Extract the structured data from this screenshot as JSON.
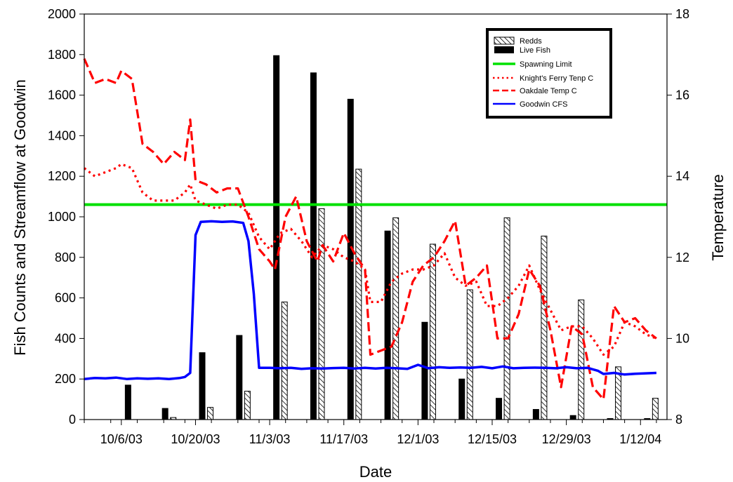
{
  "chart_data": {
    "type": "bar",
    "xlabel": "Date",
    "ylabel": "Fish Counts and Streamflow at Goodwin",
    "y2label": "Temperature",
    "x_axis": {
      "start": "2003-09-29",
      "end": "2004-01-17",
      "tick_labels": [
        "10/6/03",
        "10/20/03",
        "11/3/03",
        "11/17/03",
        "12/1/03",
        "12/15/03",
        "12/29/03",
        "1/12/04"
      ],
      "tick_dates": [
        "2003-10-06",
        "2003-10-20",
        "2003-11-03",
        "2003-11-17",
        "2003-12-01",
        "2003-12-15",
        "2003-12-29",
        "2004-01-12"
      ],
      "minor_tick_dates": [
        "2003-09-29",
        "2003-10-04",
        "2003-10-09",
        "2003-10-14",
        "2003-10-18",
        "2003-10-23",
        "2003-10-28",
        "2003-11-01",
        "2003-11-06",
        "2003-11-10",
        "2003-11-14",
        "2003-11-20",
        "2003-11-24",
        "2003-11-28",
        "2003-12-04",
        "2003-12-08",
        "2003-12-12",
        "2003-12-18",
        "2003-12-22",
        "2003-12-26",
        "2004-01-01",
        "2004-01-05",
        "2004-01-09",
        "2004-01-15"
      ]
    },
    "ylim": [
      0,
      2000
    ],
    "y_ticks": [
      0,
      200,
      400,
      600,
      800,
      1000,
      1200,
      1400,
      1600,
      1800,
      2000
    ],
    "y2lim": [
      8,
      18
    ],
    "y2_ticks": [
      8,
      10,
      12,
      14,
      16,
      18
    ],
    "spawning_limit": 1060,
    "legend_position": "top-right",
    "series": [
      {
        "name": "Redds",
        "kind": "bar",
        "axis": "left",
        "pattern": "hatch",
        "points": [
          {
            "date": "2003-10-08",
            "value": 0
          },
          {
            "date": "2003-10-15",
            "value": 10
          },
          {
            "date": "2003-10-22",
            "value": 60
          },
          {
            "date": "2003-10-29",
            "value": 140
          },
          {
            "date": "2003-11-05",
            "value": 580
          },
          {
            "date": "2003-11-12",
            "value": 1040
          },
          {
            "date": "2003-11-19",
            "value": 1235
          },
          {
            "date": "2003-11-26",
            "value": 995
          },
          {
            "date": "2003-12-03",
            "value": 865
          },
          {
            "date": "2003-12-10",
            "value": 640
          },
          {
            "date": "2003-12-17",
            "value": 995
          },
          {
            "date": "2003-12-24",
            "value": 905
          },
          {
            "date": "2003-12-31",
            "value": 590
          },
          {
            "date": "2004-01-07",
            "value": 260
          },
          {
            "date": "2004-01-14",
            "value": 105
          }
        ]
      },
      {
        "name": "Live Fish",
        "kind": "bar",
        "axis": "left",
        "color": "#000000",
        "points": [
          {
            "date": "2003-10-07",
            "value": 170
          },
          {
            "date": "2003-10-14",
            "value": 55
          },
          {
            "date": "2003-10-21",
            "value": 330
          },
          {
            "date": "2003-10-28",
            "value": 415
          },
          {
            "date": "2003-11-04",
            "value": 1795
          },
          {
            "date": "2003-11-11",
            "value": 1710
          },
          {
            "date": "2003-11-18",
            "value": 1580
          },
          {
            "date": "2003-11-25",
            "value": 930
          },
          {
            "date": "2003-12-02",
            "value": 480
          },
          {
            "date": "2003-12-09",
            "value": 200
          },
          {
            "date": "2003-12-16",
            "value": 105
          },
          {
            "date": "2003-12-23",
            "value": 50
          },
          {
            "date": "2003-12-30",
            "value": 20
          },
          {
            "date": "2004-01-06",
            "value": 5
          },
          {
            "date": "2004-01-13",
            "value": 5
          }
        ]
      },
      {
        "name": "Spawning Limit",
        "kind": "hline",
        "axis": "left",
        "color": "#00e000"
      },
      {
        "name": "Knight's Ferry Tenp C",
        "kind": "line",
        "axis": "right",
        "style": "dotted",
        "color": "#ff0000",
        "points": [
          [
            "2003-09-29",
            14.2
          ],
          [
            "2003-10-01",
            14.0
          ],
          [
            "2003-10-03",
            14.1
          ],
          [
            "2003-10-05",
            14.2
          ],
          [
            "2003-10-06",
            14.3
          ],
          [
            "2003-10-08",
            14.2
          ],
          [
            "2003-10-10",
            13.6
          ],
          [
            "2003-10-12",
            13.4
          ],
          [
            "2003-10-14",
            13.4
          ],
          [
            "2003-10-16",
            13.4
          ],
          [
            "2003-10-18",
            13.6
          ],
          [
            "2003-10-19",
            13.8
          ],
          [
            "2003-10-20",
            13.4
          ],
          [
            "2003-10-22",
            13.3
          ],
          [
            "2003-10-24",
            13.2
          ],
          [
            "2003-10-26",
            13.3
          ],
          [
            "2003-10-28",
            13.3
          ],
          [
            "2003-10-30",
            13.1
          ],
          [
            "2003-11-01",
            12.5
          ],
          [
            "2003-11-03",
            12.2
          ],
          [
            "2003-11-05",
            12.6
          ],
          [
            "2003-11-07",
            12.7
          ],
          [
            "2003-11-09",
            12.4
          ],
          [
            "2003-11-11",
            12.0
          ],
          [
            "2003-11-13",
            12.3
          ],
          [
            "2003-11-15",
            12.2
          ],
          [
            "2003-11-17",
            12.0
          ],
          [
            "2003-11-19",
            11.9
          ],
          [
            "2003-11-21",
            11.7
          ],
          [
            "2003-11-22",
            10.9
          ],
          [
            "2003-11-24",
            10.9
          ],
          [
            "2003-11-26",
            11.4
          ],
          [
            "2003-11-28",
            11.6
          ],
          [
            "2003-11-30",
            11.7
          ],
          [
            "2003-12-02",
            11.7
          ],
          [
            "2003-12-04",
            11.8
          ],
          [
            "2003-12-06",
            12.1
          ],
          [
            "2003-12-08",
            11.5
          ],
          [
            "2003-12-10",
            11.3
          ],
          [
            "2003-12-12",
            11.4
          ],
          [
            "2003-12-14",
            10.8
          ],
          [
            "2003-12-16",
            10.8
          ],
          [
            "2003-12-18",
            11.0
          ],
          [
            "2003-12-20",
            11.3
          ],
          [
            "2003-12-22",
            11.8
          ],
          [
            "2003-12-24",
            11.2
          ],
          [
            "2003-12-26",
            10.7
          ],
          [
            "2003-12-28",
            10.2
          ],
          [
            "2003-12-30",
            10.3
          ],
          [
            "2004-01-01",
            10.3
          ],
          [
            "2004-01-03",
            10.0
          ],
          [
            "2004-01-05",
            9.6
          ],
          [
            "2004-01-07",
            9.8
          ],
          [
            "2004-01-09",
            10.4
          ],
          [
            "2004-01-11",
            10.3
          ],
          [
            "2004-01-13",
            10.1
          ],
          [
            "2004-01-15",
            10.0
          ]
        ]
      },
      {
        "name": "Oakdale Temp C",
        "kind": "line",
        "axis": "right",
        "style": "dashed",
        "color": "#ff0000",
        "points": [
          [
            "2003-09-29",
            16.9
          ],
          [
            "2003-10-01",
            16.3
          ],
          [
            "2003-10-03",
            16.4
          ],
          [
            "2003-10-05",
            16.3
          ],
          [
            "2003-10-06",
            16.6
          ],
          [
            "2003-10-08",
            16.4
          ],
          [
            "2003-10-10",
            14.8
          ],
          [
            "2003-10-12",
            14.6
          ],
          [
            "2003-10-14",
            14.3
          ],
          [
            "2003-10-16",
            14.6
          ],
          [
            "2003-10-18",
            14.4
          ],
          [
            "2003-10-19",
            15.4
          ],
          [
            "2003-10-20",
            13.9
          ],
          [
            "2003-10-22",
            13.8
          ],
          [
            "2003-10-24",
            13.6
          ],
          [
            "2003-10-26",
            13.7
          ],
          [
            "2003-10-28",
            13.7
          ],
          [
            "2003-10-30",
            13.0
          ],
          [
            "2003-11-01",
            12.2
          ],
          [
            "2003-11-03",
            11.9
          ],
          [
            "2003-11-04",
            11.7
          ],
          [
            "2003-11-06",
            13.0
          ],
          [
            "2003-11-08",
            13.5
          ],
          [
            "2003-11-10",
            12.4
          ],
          [
            "2003-11-12",
            11.9
          ],
          [
            "2003-11-13",
            12.3
          ],
          [
            "2003-11-15",
            11.9
          ],
          [
            "2003-11-17",
            12.6
          ],
          [
            "2003-11-19",
            12.1
          ],
          [
            "2003-11-21",
            11.7
          ],
          [
            "2003-11-22",
            9.6
          ],
          [
            "2003-11-24",
            9.7
          ],
          [
            "2003-11-26",
            9.8
          ],
          [
            "2003-11-28",
            10.4
          ],
          [
            "2003-11-30",
            11.4
          ],
          [
            "2003-12-02",
            11.8
          ],
          [
            "2003-12-04",
            12.0
          ],
          [
            "2003-12-06",
            12.4
          ],
          [
            "2003-12-08",
            12.9
          ],
          [
            "2003-12-10",
            11.3
          ],
          [
            "2003-12-12",
            11.5
          ],
          [
            "2003-12-14",
            11.8
          ],
          [
            "2003-12-16",
            10.0
          ],
          [
            "2003-12-18",
            10.0
          ],
          [
            "2003-12-20",
            10.6
          ],
          [
            "2003-12-22",
            11.7
          ],
          [
            "2003-12-24",
            11.3
          ],
          [
            "2003-12-26",
            10.2
          ],
          [
            "2003-12-28",
            8.8
          ],
          [
            "2003-12-30",
            10.3
          ],
          [
            "2004-01-01",
            10.1
          ],
          [
            "2004-01-03",
            8.8
          ],
          [
            "2004-01-05",
            8.5
          ],
          [
            "2004-01-07",
            10.8
          ],
          [
            "2004-01-09",
            10.4
          ],
          [
            "2004-01-11",
            10.5
          ],
          [
            "2004-01-13",
            10.2
          ],
          [
            "2004-01-15",
            10.0
          ]
        ]
      },
      {
        "name": "Goodwin CFS",
        "kind": "line",
        "axis": "left",
        "style": "solid",
        "color": "#0000ff",
        "points": [
          [
            "2003-09-29",
            200
          ],
          [
            "2003-10-01",
            205
          ],
          [
            "2003-10-03",
            203
          ],
          [
            "2003-10-05",
            207
          ],
          [
            "2003-10-07",
            200
          ],
          [
            "2003-10-09",
            203
          ],
          [
            "2003-10-11",
            201
          ],
          [
            "2003-10-13",
            203
          ],
          [
            "2003-10-15",
            200
          ],
          [
            "2003-10-17",
            205
          ],
          [
            "2003-10-18",
            210
          ],
          [
            "2003-10-19",
            230
          ],
          [
            "2003-10-20",
            910
          ],
          [
            "2003-10-21",
            975
          ],
          [
            "2003-10-23",
            978
          ],
          [
            "2003-10-25",
            975
          ],
          [
            "2003-10-27",
            977
          ],
          [
            "2003-10-29",
            970
          ],
          [
            "2003-10-30",
            880
          ],
          [
            "2003-10-31",
            620
          ],
          [
            "2003-11-01",
            255
          ],
          [
            "2003-11-03",
            255
          ],
          [
            "2003-11-05",
            253
          ],
          [
            "2003-11-07",
            255
          ],
          [
            "2003-11-09",
            250
          ],
          [
            "2003-11-11",
            253
          ],
          [
            "2003-11-13",
            252
          ],
          [
            "2003-11-15",
            254
          ],
          [
            "2003-11-17",
            255
          ],
          [
            "2003-11-19",
            252
          ],
          [
            "2003-11-21",
            255
          ],
          [
            "2003-11-23",
            252
          ],
          [
            "2003-11-25",
            255
          ],
          [
            "2003-11-27",
            253
          ],
          [
            "2003-11-29",
            250
          ],
          [
            "2003-12-01",
            270
          ],
          [
            "2003-12-03",
            253
          ],
          [
            "2003-12-05",
            258
          ],
          [
            "2003-12-07",
            255
          ],
          [
            "2003-12-09",
            257
          ],
          [
            "2003-12-11",
            255
          ],
          [
            "2003-12-13",
            260
          ],
          [
            "2003-12-15",
            253
          ],
          [
            "2003-12-17",
            262
          ],
          [
            "2003-12-19",
            253
          ],
          [
            "2003-12-21",
            255
          ],
          [
            "2003-12-23",
            256
          ],
          [
            "2003-12-25",
            255
          ],
          [
            "2003-12-27",
            253
          ],
          [
            "2003-12-29",
            258
          ],
          [
            "2003-12-31",
            253
          ],
          [
            "2004-01-02",
            255
          ],
          [
            "2004-01-04",
            240
          ],
          [
            "2004-01-05",
            225
          ],
          [
            "2004-01-07",
            230
          ],
          [
            "2004-01-09",
            222
          ],
          [
            "2004-01-11",
            226
          ],
          [
            "2004-01-13",
            228
          ],
          [
            "2004-01-15",
            230
          ]
        ]
      }
    ]
  }
}
